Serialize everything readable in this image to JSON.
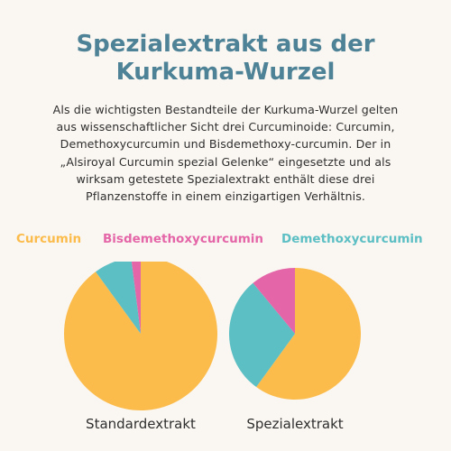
{
  "header": {
    "title_line1": "Spezialextrakt aus der",
    "title_line2": "Kurkuma-Wurzel"
  },
  "intro": {
    "lines": [
      "Als die wichtigsten Bestandteile der Kurkuma-Wurzel gelten",
      "aus wissenschaftlicher Sicht drei Curcuminoide: Curcumin,",
      "Demethoxycurcumin und Bisdemethoxy-curcumin. Der in",
      "„Alsiroyal Curcumin spezial Gelenke“ eingesetzte und als",
      "wirksam getestete Spezialextrakt enthält diese drei",
      "Pflanzenstoffe in einem einzigartigen Verhältnis."
    ]
  },
  "legend": {
    "curcumin": "Curcumin",
    "bisdemethoxycurcumin": "Bisdemethoxycurcumin",
    "demethoxycurcumin": "Demethoxycurcumin"
  },
  "colors": {
    "title": "#4e8296",
    "curcumin": "#fbbc4c",
    "bisdemethoxycurcumin": "#e466a8",
    "demethoxycurcumin": "#5cbfc4",
    "background": "#faf6f1"
  },
  "chart_data": [
    {
      "type": "pie",
      "title": "Standardextrakt",
      "categories": [
        "Curcumin",
        "Demethoxycurcumin",
        "Bisdemethoxycurcumin"
      ],
      "values": [
        90,
        8,
        2
      ],
      "unit": "%",
      "start_angle_deg": 0,
      "legend_position": "top"
    },
    {
      "type": "pie",
      "title": "Spezialextrakt",
      "categories": [
        "Curcumin",
        "Demethoxycurcumin",
        "Bisdemethoxycurcumin"
      ],
      "values": [
        60,
        29,
        11
      ],
      "unit": "%",
      "start_angle_deg": 0,
      "legend_position": "top"
    }
  ]
}
